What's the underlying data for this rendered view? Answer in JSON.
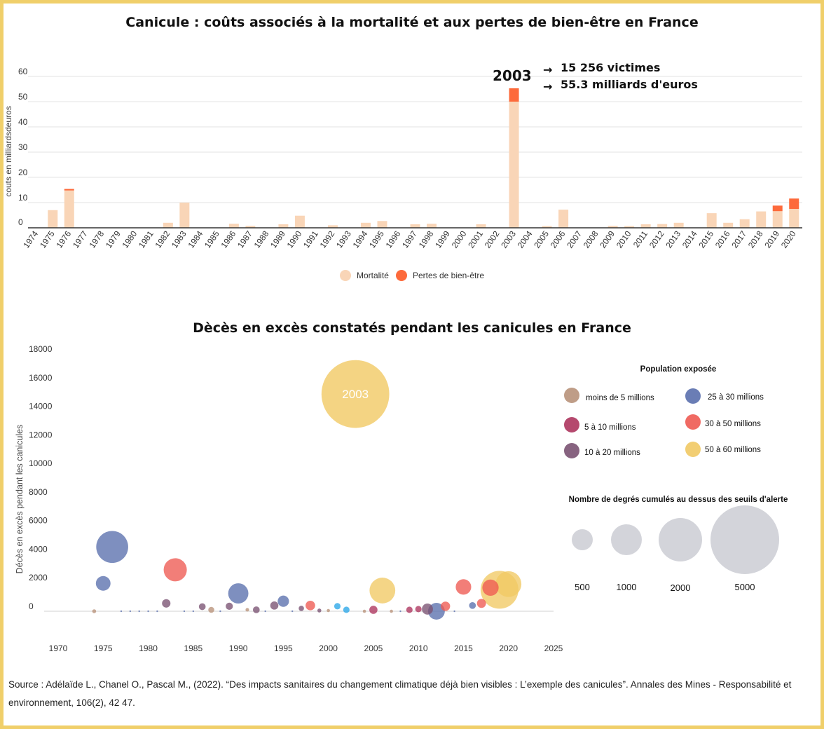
{
  "chart_data": [
    {
      "type": "bar",
      "title": "Canicule : coûts associés à la mortalité et aux pertes de bien-être en France",
      "ylabel": "couts en milliardsdeuros",
      "xlabel": "",
      "ylim": [
        0,
        60
      ],
      "yticks": [
        0,
        10,
        20,
        30,
        40,
        50,
        60
      ],
      "categories": [
        "1974",
        "1975",
        "1976",
        "1977",
        "1978",
        "1979",
        "1980",
        "1981",
        "1982",
        "1983",
        "1984",
        "1985",
        "1986",
        "1987",
        "1988",
        "1989",
        "1990",
        "1991",
        "1992",
        "1993",
        "1994",
        "1995",
        "1996",
        "1997",
        "1998",
        "1999",
        "2000",
        "2001",
        "2002",
        "2003",
        "2004",
        "2005",
        "2006",
        "2007",
        "2008",
        "2009",
        "2010",
        "2011",
        "2012",
        "2013",
        "2014",
        "2015",
        "2016",
        "2017",
        "2018",
        "2019",
        "2020"
      ],
      "series": [
        {
          "name": "Mortalité",
          "color": "#f9d5b7",
          "values": [
            0,
            7,
            14.8,
            0,
            0,
            0,
            0,
            0,
            2,
            10,
            0,
            0,
            1.6,
            0.8,
            0,
            1.4,
            4.8,
            0,
            1,
            0,
            2,
            2.7,
            0,
            1.4,
            1.6,
            0,
            0,
            1.4,
            0,
            50,
            0,
            0.7,
            7.2,
            0,
            0,
            0.8,
            0.7,
            1.4,
            1.5,
            2,
            0,
            5.8,
            2,
            3.4,
            6.5,
            6.6,
            7.5
          ]
        },
        {
          "name": "Pertes de bien-être",
          "color": "#fd6a3b",
          "values": [
            0,
            0,
            0.6,
            0,
            0,
            0,
            0,
            0,
            0,
            0,
            0,
            0,
            0,
            0,
            0,
            0,
            0,
            0,
            0,
            0,
            0,
            0,
            0,
            0,
            0,
            0,
            0,
            0,
            0,
            5.3,
            0,
            0,
            0,
            0,
            0,
            0,
            0,
            0,
            0,
            0,
            0,
            0,
            0,
            0,
            0,
            2.2,
            4.1
          ]
        }
      ],
      "legend_position": "bottom",
      "annotation": {
        "year": "2003",
        "line1": "15 256 victimes",
        "line2": "55.3 milliards d'euros",
        "arrow": "→"
      }
    },
    {
      "type": "scatter",
      "title": "Dècès en excès constatés pendant les canicules en France",
      "ylabel": "Décès en excès pendant les canicules",
      "xlabel": "",
      "xlim": [
        1970,
        2025
      ],
      "ylim": [
        0,
        18000
      ],
      "xticks": [
        1970,
        1975,
        1980,
        1985,
        1990,
        1995,
        2000,
        2005,
        2010,
        2015,
        2020,
        2025
      ],
      "yticks": [
        0,
        2000,
        4000,
        6000,
        8000,
        10000,
        12000,
        14000,
        16000,
        18000
      ],
      "highlight_label": "2003",
      "population_legend_title": "Population exposée",
      "population_classes": [
        {
          "key": "p1",
          "label": "moins de 5 millions",
          "color": "#b8927a"
        },
        {
          "key": "p2",
          "label": "5 à 10 millions",
          "color": "#ad355e"
        },
        {
          "key": "p3",
          "label": "10 à 20 millions",
          "color": "#7a5272"
        },
        {
          "key": "p4",
          "label": "25 à 30 millions",
          "color": "#5a6fad"
        },
        {
          "key": "p5",
          "label": "30 à 50 millions",
          "color": "#ee5a52"
        },
        {
          "key": "p6",
          "label": "50 à 60 millions",
          "color": "#f1c964"
        },
        {
          "key": "p7",
          "label": "",
          "color": "#2aa6e8"
        }
      ],
      "size_legend_title": "Nombre de degrés cumulés au dessus des seuils d'alerte",
      "size_legend": [
        500,
        1000,
        2000,
        5000
      ],
      "points": [
        {
          "year": 1974,
          "deaths": 0,
          "degrees": 30,
          "pop": "p1"
        },
        {
          "year": 1975,
          "deaths": 1950,
          "degrees": 420,
          "pop": "p4"
        },
        {
          "year": 1976,
          "deaths": 4500,
          "degrees": 2000,
          "pop": "p4"
        },
        {
          "year": 1977,
          "deaths": 0,
          "degrees": 5,
          "pop": "p4"
        },
        {
          "year": 1978,
          "deaths": 0,
          "degrees": 5,
          "pop": "p4"
        },
        {
          "year": 1979,
          "deaths": 0,
          "degrees": 5,
          "pop": "p4"
        },
        {
          "year": 1980,
          "deaths": 0,
          "degrees": 5,
          "pop": "p4"
        },
        {
          "year": 1981,
          "deaths": 0,
          "degrees": 5,
          "pop": "p4"
        },
        {
          "year": 1982,
          "deaths": 550,
          "degrees": 140,
          "pop": "p3"
        },
        {
          "year": 1983,
          "deaths": 2900,
          "degrees": 1050,
          "pop": "p5"
        },
        {
          "year": 1984,
          "deaths": 0,
          "degrees": 5,
          "pop": "p4"
        },
        {
          "year": 1985,
          "deaths": 0,
          "degrees": 5,
          "pop": "p4"
        },
        {
          "year": 1986,
          "deaths": 320,
          "degrees": 90,
          "pop": "p3"
        },
        {
          "year": 1987,
          "deaths": 100,
          "degrees": 70,
          "pop": "p1"
        },
        {
          "year": 1988,
          "deaths": 0,
          "degrees": 5,
          "pop": "p4"
        },
        {
          "year": 1989,
          "deaths": 350,
          "degrees": 100,
          "pop": "p3"
        },
        {
          "year": 1990,
          "deaths": 1250,
          "degrees": 800,
          "pop": "p4"
        },
        {
          "year": 1991,
          "deaths": 100,
          "degrees": 25,
          "pop": "p1"
        },
        {
          "year": 1992,
          "deaths": 100,
          "degrees": 90,
          "pop": "p3"
        },
        {
          "year": 1993,
          "deaths": 0,
          "degrees": 5,
          "pop": "p4"
        },
        {
          "year": 1994,
          "deaths": 400,
          "degrees": 130,
          "pop": "p3"
        },
        {
          "year": 1995,
          "deaths": 700,
          "degrees": 250,
          "pop": "p4"
        },
        {
          "year": 1996,
          "deaths": 0,
          "degrees": 5,
          "pop": "p4"
        },
        {
          "year": 1997,
          "deaths": 200,
          "degrees": 55,
          "pop": "p3"
        },
        {
          "year": 1998,
          "deaths": 400,
          "degrees": 180,
          "pop": "p5"
        },
        {
          "year": 1999,
          "deaths": 50,
          "degrees": 30,
          "pop": "p3"
        },
        {
          "year": 2000,
          "deaths": 50,
          "degrees": 20,
          "pop": "p1"
        },
        {
          "year": 2001,
          "deaths": 350,
          "degrees": 80,
          "pop": "p7"
        },
        {
          "year": 2002,
          "deaths": 100,
          "degrees": 80,
          "pop": "p7"
        },
        {
          "year": 2003,
          "deaths": 15200,
          "degrees": 9000,
          "pop": "p6"
        },
        {
          "year": 2004,
          "deaths": 0,
          "degrees": 20,
          "pop": "p1"
        },
        {
          "year": 2005,
          "deaths": 100,
          "degrees": 130,
          "pop": "p2"
        },
        {
          "year": 2006,
          "deaths": 1450,
          "degrees": 1300,
          "pop": "p6"
        },
        {
          "year": 2007,
          "deaths": 0,
          "degrees": 20,
          "pop": "p1"
        },
        {
          "year": 2008,
          "deaths": 0,
          "degrees": 5,
          "pop": "p4"
        },
        {
          "year": 2009,
          "deaths": 100,
          "degrees": 80,
          "pop": "p2"
        },
        {
          "year": 2010,
          "deaths": 150,
          "degrees": 80,
          "pop": "p2"
        },
        {
          "year": 2011,
          "deaths": 150,
          "degrees": 240,
          "pop": "p3"
        },
        {
          "year": 2012,
          "deaths": 0,
          "degrees": 550,
          "pop": "p4"
        },
        {
          "year": 2013,
          "deaths": 350,
          "degrees": 170,
          "pop": "p5"
        },
        {
          "year": 2014,
          "deaths": 0,
          "degrees": 5,
          "pop": "p4"
        },
        {
          "year": 2015,
          "deaths": 1700,
          "degrees": 470,
          "pop": "p5"
        },
        {
          "year": 2016,
          "deaths": 400,
          "degrees": 90,
          "pop": "p4"
        },
        {
          "year": 2017,
          "deaths": 550,
          "degrees": 160,
          "pop": "p5"
        },
        {
          "year": 2018,
          "deaths": 1650,
          "degrees": 520,
          "pop": "p5"
        },
        {
          "year": 2019,
          "deaths": 1500,
          "degrees": 2800,
          "pop": "p6"
        },
        {
          "year": 2020,
          "deaths": 1900,
          "degrees": 1300,
          "pop": "p6"
        }
      ]
    }
  ],
  "source": "Source : Adélaïde L., Chanel O., Pascal M., (2022). “Des impacts sanitaires du changement climatique déjà bien visibles : L’exemple des canicules”. Annales des Mines - Responsabilité et environnement, 106(2), 42 47."
}
